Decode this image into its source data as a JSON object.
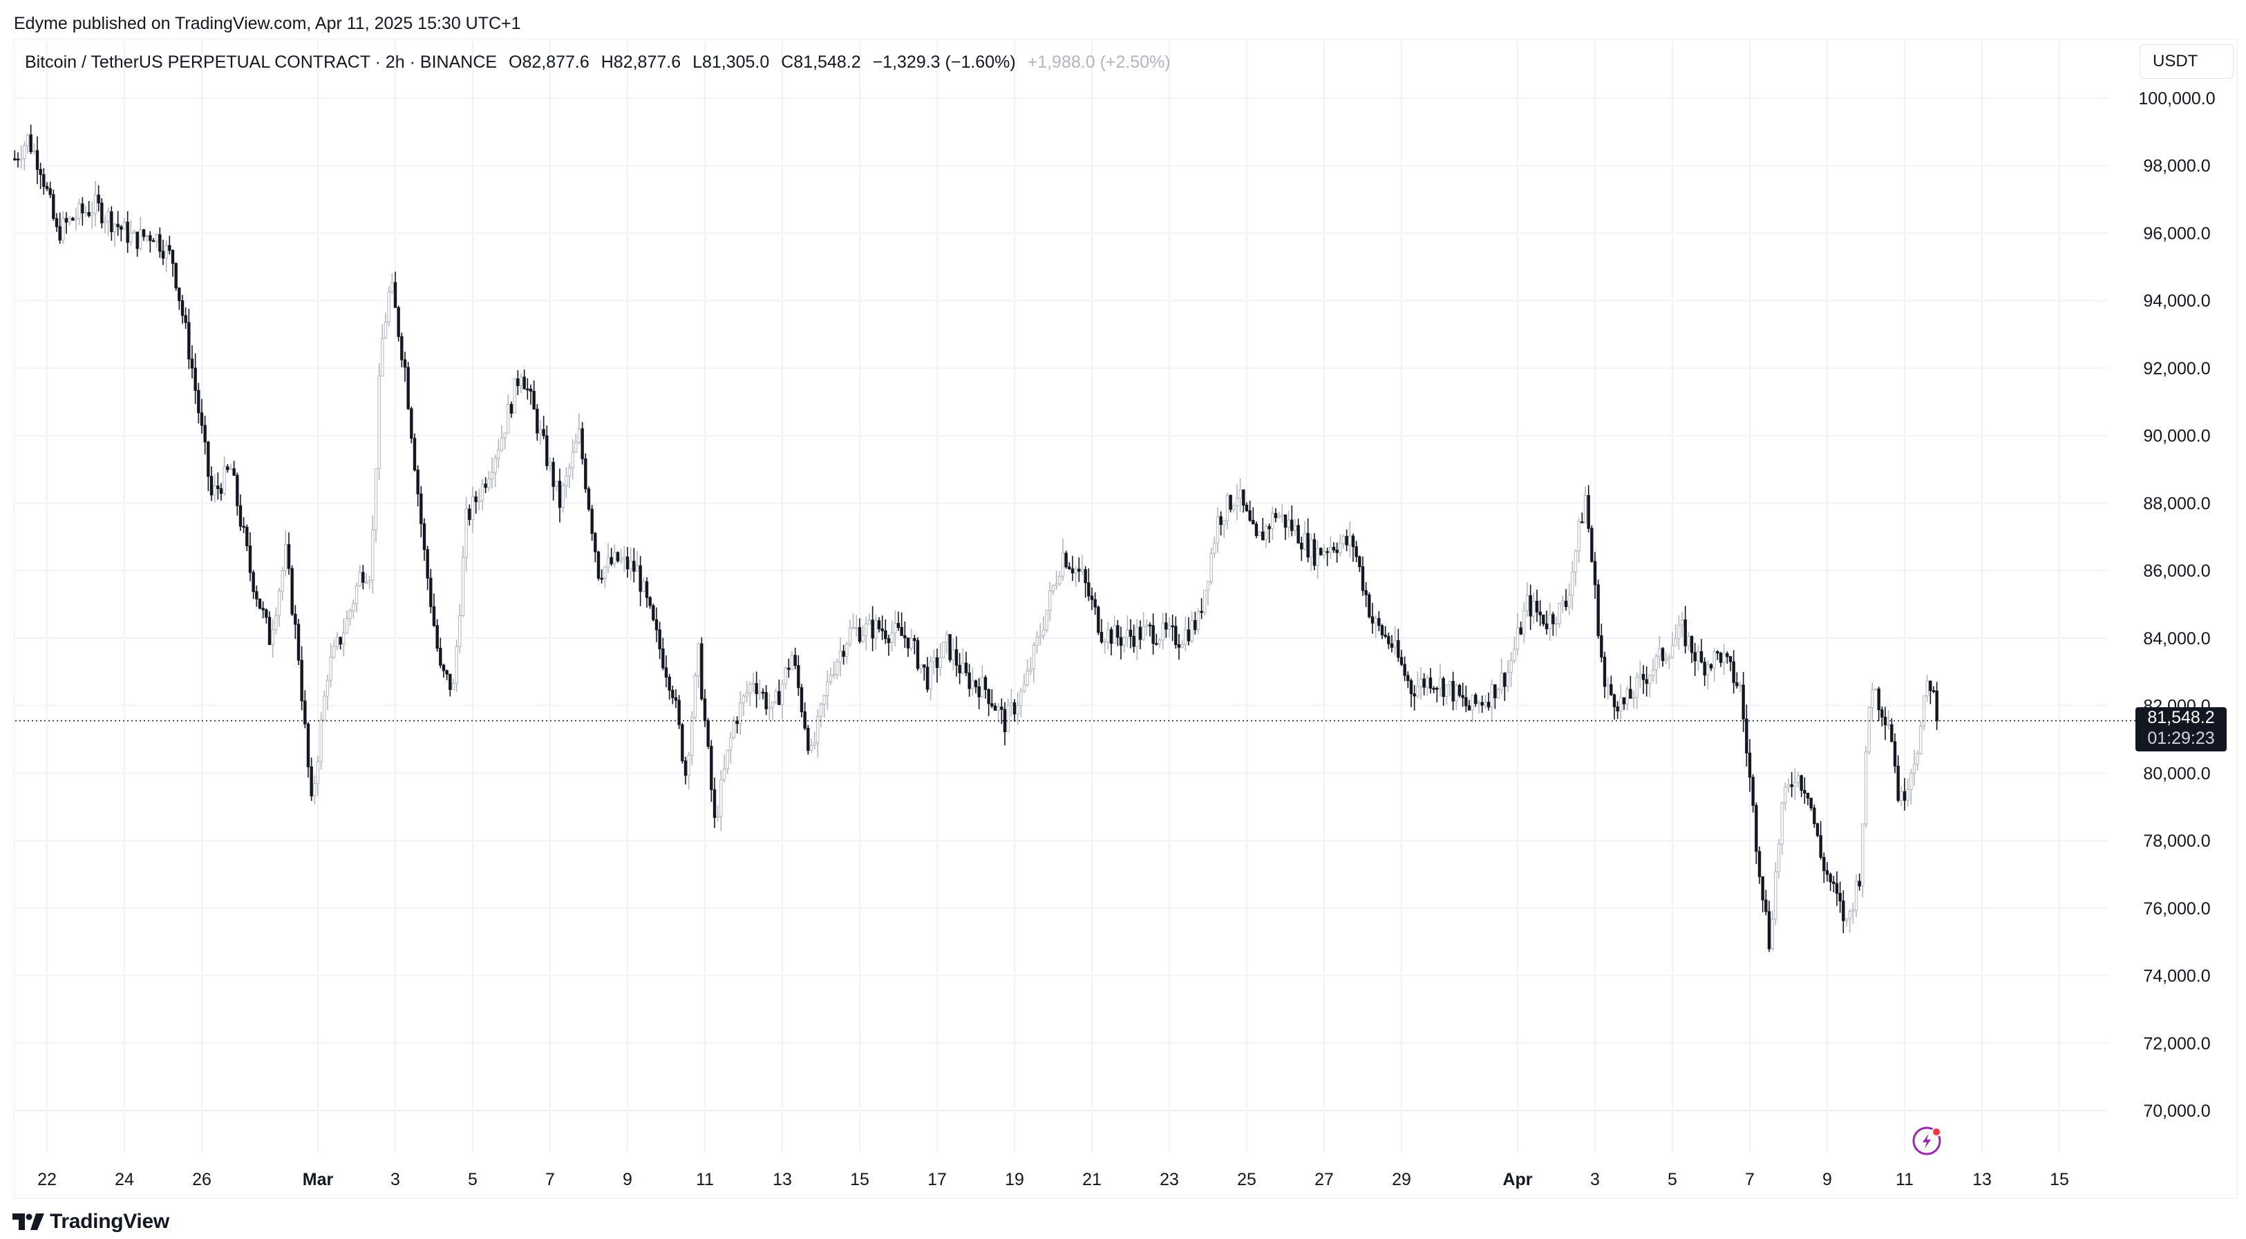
{
  "header": {
    "published": "Edyme published on TradingView.com, Apr 11, 2025 15:30 UTC+1"
  },
  "legend": {
    "symbol": "Bitcoin / TetherUS PERPETUAL CONTRACT · 2h · BINANCE",
    "open": "O82,877.6",
    "high": "H82,877.6",
    "low": "L81,305.0",
    "close": "C81,548.2",
    "change": "−1,329.3 (−1.60%)",
    "change_alt": "+1,988.0 (+2.50%)"
  },
  "toolbar": {
    "currency": "USDT"
  },
  "price_label": {
    "price": "81,548.2",
    "countdown": "01:29:23"
  },
  "footer": {
    "brand": "TradingView"
  },
  "colors": {
    "candle": "#131722",
    "grid": "#f0f3fa",
    "text": "#131722",
    "muted": "#b2b5be",
    "lightning": "#9c27b0",
    "dot": "#f23645"
  },
  "icons": {
    "logo": "tradingview-logo-icon",
    "alert": "lightning-icon"
  },
  "chart_data": {
    "type": "candlestick",
    "title": "Bitcoin / TetherUS PERPETUAL CONTRACT · 2h · BINANCE",
    "xlabel": "",
    "ylabel": "",
    "currency": "USDT",
    "ylim": [
      68500,
      100800
    ],
    "y_ticks": [
      100000,
      98000,
      96000,
      94000,
      92000,
      90000,
      88000,
      86000,
      84000,
      82000,
      80000,
      78000,
      76000,
      74000,
      72000,
      70000
    ],
    "y_tick_labels": [
      "100,000.0",
      "98,000.0",
      "96,000.0",
      "94,000.0",
      "92,000.0",
      "90,000.0",
      "88,000.0",
      "86,000.0",
      "84,000.0",
      "82,000.0",
      "80,000.0",
      "78,000.0",
      "76,000.0",
      "74,000.0",
      "72,000.0",
      "70,000.0"
    ],
    "x_range": [
      "2025-02-21",
      "2025-04-16"
    ],
    "x_ticks": [
      {
        "date": "2025-02-22",
        "label": "22",
        "bold": false
      },
      {
        "date": "2025-02-24",
        "label": "24",
        "bold": false
      },
      {
        "date": "2025-02-26",
        "label": "26",
        "bold": false
      },
      {
        "date": "2025-03-01",
        "label": "Mar",
        "bold": true
      },
      {
        "date": "2025-03-03",
        "label": "3",
        "bold": false
      },
      {
        "date": "2025-03-05",
        "label": "5",
        "bold": false
      },
      {
        "date": "2025-03-07",
        "label": "7",
        "bold": false
      },
      {
        "date": "2025-03-09",
        "label": "9",
        "bold": false
      },
      {
        "date": "2025-03-11",
        "label": "11",
        "bold": false
      },
      {
        "date": "2025-03-13",
        "label": "13",
        "bold": false
      },
      {
        "date": "2025-03-15",
        "label": "15",
        "bold": false
      },
      {
        "date": "2025-03-17",
        "label": "17",
        "bold": false
      },
      {
        "date": "2025-03-19",
        "label": "19",
        "bold": false
      },
      {
        "date": "2025-03-21",
        "label": "21",
        "bold": false
      },
      {
        "date": "2025-03-23",
        "label": "23",
        "bold": false
      },
      {
        "date": "2025-03-25",
        "label": "25",
        "bold": false
      },
      {
        "date": "2025-03-27",
        "label": "27",
        "bold": false
      },
      {
        "date": "2025-03-29",
        "label": "29",
        "bold": false
      },
      {
        "date": "2025-04-01",
        "label": "Apr",
        "bold": true
      },
      {
        "date": "2025-04-03",
        "label": "3",
        "bold": false
      },
      {
        "date": "2025-04-05",
        "label": "5",
        "bold": false
      },
      {
        "date": "2025-04-07",
        "label": "7",
        "bold": false
      },
      {
        "date": "2025-04-09",
        "label": "9",
        "bold": false
      },
      {
        "date": "2025-04-11",
        "label": "11",
        "bold": false
      },
      {
        "date": "2025-04-13",
        "label": "13",
        "bold": false
      },
      {
        "date": "2025-04-15",
        "label": "15",
        "bold": false
      }
    ],
    "last_price": 81548.2,
    "last_price_line": "dotted",
    "grid": true,
    "series_path": [
      {
        "date": "2025-02-21",
        "price": 98200
      },
      {
        "date": "2025-02-21",
        "price": 98800
      },
      {
        "date": "2025-02-21",
        "price": 98000
      },
      {
        "date": "2025-02-22",
        "price": 96000
      },
      {
        "date": "2025-02-22",
        "price": 96500
      },
      {
        "date": "2025-02-23",
        "price": 96800
      },
      {
        "date": "2025-02-23",
        "price": 96300
      },
      {
        "date": "2025-02-24",
        "price": 95800
      },
      {
        "date": "2025-02-24",
        "price": 96000
      },
      {
        "date": "2025-02-25",
        "price": 95200
      },
      {
        "date": "2025-02-25",
        "price": 92000
      },
      {
        "date": "2025-02-26",
        "price": 88200
      },
      {
        "date": "2025-02-26",
        "price": 89000
      },
      {
        "date": "2025-02-27",
        "price": 86000
      },
      {
        "date": "2025-02-27",
        "price": 84000
      },
      {
        "date": "2025-02-28",
        "price": 86500
      },
      {
        "date": "2025-02-28",
        "price": 83500
      },
      {
        "date": "2025-02-28",
        "price": 79000
      },
      {
        "date": "2025-03-01",
        "price": 83000
      },
      {
        "date": "2025-03-01",
        "price": 84500
      },
      {
        "date": "2025-03-02",
        "price": 86000
      },
      {
        "date": "2025-03-02",
        "price": 86000
      },
      {
        "date": "2025-03-02",
        "price": 92500
      },
      {
        "date": "2025-03-02",
        "price": 94500
      },
      {
        "date": "2025-03-03",
        "price": 92000
      },
      {
        "date": "2025-03-03",
        "price": 86500
      },
      {
        "date": "2025-03-04",
        "price": 83000
      },
      {
        "date": "2025-03-04",
        "price": 82500
      },
      {
        "date": "2025-03-04",
        "price": 87500
      },
      {
        "date": "2025-03-05",
        "price": 88500
      },
      {
        "date": "2025-03-05",
        "price": 90000
      },
      {
        "date": "2025-03-06",
        "price": 92000
      },
      {
        "date": "2025-03-06",
        "price": 90000
      },
      {
        "date": "2025-03-07",
        "price": 88000
      },
      {
        "date": "2025-03-07",
        "price": 90000
      },
      {
        "date": "2025-03-08",
        "price": 86000
      },
      {
        "date": "2025-03-08",
        "price": 86300
      },
      {
        "date": "2025-03-09",
        "price": 86000
      },
      {
        "date": "2025-03-09",
        "price": 84000
      },
      {
        "date": "2025-03-10",
        "price": 82500
      },
      {
        "date": "2025-03-10",
        "price": 80000
      },
      {
        "date": "2025-03-10",
        "price": 83500
      },
      {
        "date": "2025-03-11",
        "price": 78500
      },
      {
        "date": "2025-03-11",
        "price": 81500
      },
      {
        "date": "2025-03-12",
        "price": 82800
      },
      {
        "date": "2025-03-12",
        "price": 81800
      },
      {
        "date": "2025-03-13",
        "price": 83500
      },
      {
        "date": "2025-03-13",
        "price": 80500
      },
      {
        "date": "2025-03-14",
        "price": 83000
      },
      {
        "date": "2025-03-14",
        "price": 84200
      },
      {
        "date": "2025-03-15",
        "price": 84300
      },
      {
        "date": "2025-03-16",
        "price": 84000
      },
      {
        "date": "2025-03-16",
        "price": 82800
      },
      {
        "date": "2025-03-17",
        "price": 83800
      },
      {
        "date": "2025-03-17",
        "price": 82800
      },
      {
        "date": "2025-03-18",
        "price": 82500
      },
      {
        "date": "2025-03-18",
        "price": 81500
      },
      {
        "date": "2025-03-19",
        "price": 82500
      },
      {
        "date": "2025-03-19",
        "price": 84500
      },
      {
        "date": "2025-03-20",
        "price": 86500
      },
      {
        "date": "2025-03-20",
        "price": 85800
      },
      {
        "date": "2025-03-21",
        "price": 84200
      },
      {
        "date": "2025-03-21",
        "price": 84000
      },
      {
        "date": "2025-03-22",
        "price": 84200
      },
      {
        "date": "2025-03-23",
        "price": 84000
      },
      {
        "date": "2025-03-23",
        "price": 84500
      },
      {
        "date": "2025-03-24",
        "price": 87500
      },
      {
        "date": "2025-03-24",
        "price": 88300
      },
      {
        "date": "2025-03-25",
        "price": 86800
      },
      {
        "date": "2025-03-25",
        "price": 87700
      },
      {
        "date": "2025-03-26",
        "price": 87200
      },
      {
        "date": "2025-03-26",
        "price": 86500
      },
      {
        "date": "2025-03-27",
        "price": 86800
      },
      {
        "date": "2025-03-27",
        "price": 86800
      },
      {
        "date": "2025-03-28",
        "price": 84500
      },
      {
        "date": "2025-03-28",
        "price": 83800
      },
      {
        "date": "2025-03-29",
        "price": 82500
      },
      {
        "date": "2025-03-29",
        "price": 82800
      },
      {
        "date": "2025-03-30",
        "price": 82500
      },
      {
        "date": "2025-03-30",
        "price": 81900
      },
      {
        "date": "2025-03-31",
        "price": 82300
      },
      {
        "date": "2025-03-31",
        "price": 83000
      },
      {
        "date": "2025-04-01",
        "price": 85000
      },
      {
        "date": "2025-04-01",
        "price": 84500
      },
      {
        "date": "2025-04-02",
        "price": 85000
      },
      {
        "date": "2025-04-02",
        "price": 88200
      },
      {
        "date": "2025-04-03",
        "price": 82500
      },
      {
        "date": "2025-04-03",
        "price": 82000
      },
      {
        "date": "2025-04-04",
        "price": 82800
      },
      {
        "date": "2025-04-04",
        "price": 83500
      },
      {
        "date": "2025-04-05",
        "price": 84200
      },
      {
        "date": "2025-04-05",
        "price": 83200
      },
      {
        "date": "2025-04-06",
        "price": 83500
      },
      {
        "date": "2025-04-06",
        "price": 82500
      },
      {
        "date": "2025-04-07",
        "price": 78000
      },
      {
        "date": "2025-04-07",
        "price": 75000
      },
      {
        "date": "2025-04-07",
        "price": 79000
      },
      {
        "date": "2025-04-08",
        "price": 80000
      },
      {
        "date": "2025-04-08",
        "price": 79500
      },
      {
        "date": "2025-04-08",
        "price": 77500
      },
      {
        "date": "2025-04-09",
        "price": 76500
      },
      {
        "date": "2025-04-09",
        "price": 75500
      },
      {
        "date": "2025-04-09",
        "price": 77000
      },
      {
        "date": "2025-04-10",
        "price": 82800
      },
      {
        "date": "2025-04-10",
        "price": 82000
      },
      {
        "date": "2025-04-10",
        "price": 81500
      },
      {
        "date": "2025-04-10",
        "price": 79000
      },
      {
        "date": "2025-04-11",
        "price": 80000
      },
      {
        "date": "2025-04-11",
        "price": 81000
      },
      {
        "date": "2025-04-11",
        "price": 82900
      },
      {
        "date": "2025-04-11",
        "price": 81548
      }
    ]
  }
}
